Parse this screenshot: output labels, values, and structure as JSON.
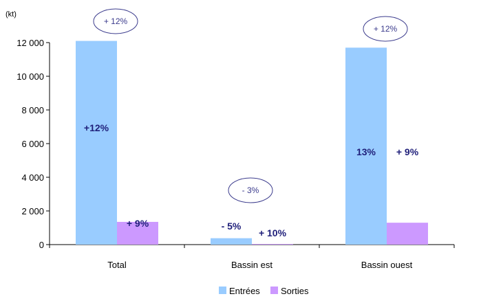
{
  "chart_data": {
    "type": "bar",
    "unit_label": "(kt)",
    "categories": [
      "Total",
      "Bassin est",
      "Bassin ouest"
    ],
    "series": [
      {
        "name": "Entrées",
        "color": "#99ccff",
        "values": [
          12100,
          380,
          11700
        ]
      },
      {
        "name": "Sorties",
        "color": "#cc99ff",
        "values": [
          1350,
          40,
          1300
        ]
      }
    ],
    "ylim": [
      0,
      12000
    ],
    "yticks": [
      0,
      2000,
      4000,
      6000,
      8000,
      10000,
      12000
    ],
    "ytick_labels": [
      "0",
      "2 000",
      "4 000",
      "6 000",
      "8 000",
      "10 000",
      "12 000"
    ],
    "grid": false,
    "legend": "bottom-center",
    "bar_labels": [
      {
        "category": "Total",
        "series": "Entrées",
        "text": "+12%"
      },
      {
        "category": "Total",
        "series": "Sorties",
        "text": "+ 9%"
      },
      {
        "category": "Bassin est",
        "series": "Entrées",
        "text": "- 5%"
      },
      {
        "category": "Bassin est",
        "series": "Sorties",
        "text": "+ 10%"
      },
      {
        "category": "Bassin ouest",
        "series": "Entrées",
        "text": "13%"
      },
      {
        "category": "Bassin ouest",
        "series": "Sorties",
        "text": "+ 9%"
      }
    ],
    "group_annotations": [
      {
        "category": "Total",
        "text": "+ 12%"
      },
      {
        "category": "Bassin est",
        "text": "- 3%"
      },
      {
        "category": "Bassin ouest",
        "text": "+ 12%"
      }
    ]
  }
}
